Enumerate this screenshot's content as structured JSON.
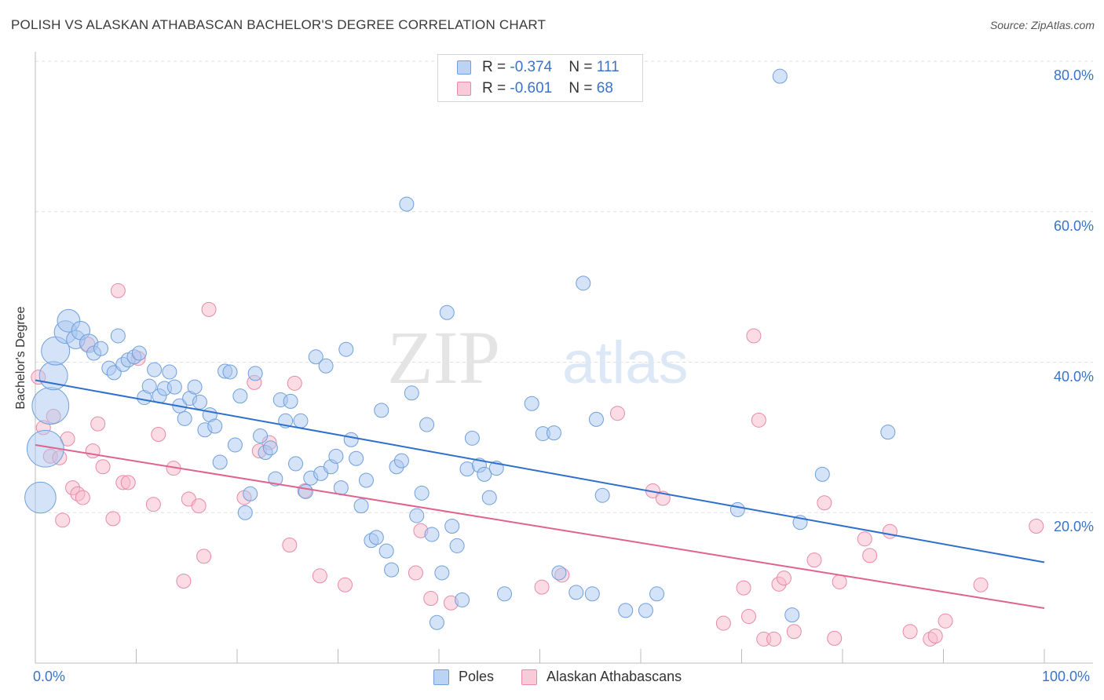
{
  "title": "POLISH VS ALASKAN ATHABASCAN BACHELOR'S DEGREE CORRELATION CHART",
  "source": "Source: ZipAtlas.com",
  "watermark": "ZIPatlas",
  "colors": {
    "poles_fill": "#a9c8f0",
    "poles_stroke": "#6f9fdc",
    "poles_line": "#2f6fcc",
    "alaskan_fill": "#f7b9cc",
    "alaskan_stroke": "#e889a8",
    "alaskan_line": "#e0628e",
    "axis_text": "#3b73c8"
  },
  "legend_top": {
    "poles": {
      "r_label": "R = ",
      "r_value": "-0.374",
      "n_label": "N = ",
      "n_value": "111"
    },
    "alaskan": {
      "r_label": "R = ",
      "r_value": "-0.601",
      "n_label": "N = ",
      "n_value": "68"
    }
  },
  "legend_bottom": {
    "poles": "Poles",
    "alaskan": "Alaskan Athabascans"
  },
  "chart_data": {
    "type": "scatter",
    "title": "POLISH VS ALASKAN ATHABASCAN BACHELOR'S DEGREE CORRELATION CHART",
    "xlabel": "",
    "ylabel": "Bachelor's Degree",
    "xlim": [
      0,
      100
    ],
    "ylim": [
      0,
      80
    ],
    "x_tick_labels": [
      "0.0%",
      "100.0%"
    ],
    "y_ticks": [
      20,
      40,
      60,
      80
    ],
    "y_tick_labels": [
      "20.0%",
      "40.0%",
      "60.0%",
      "80.0%"
    ],
    "grid": "horizontal dashed",
    "legend_position": "top-center",
    "series": [
      {
        "name": "Poles",
        "r": -0.374,
        "n": 111,
        "trend": {
          "x": [
            0,
            100
          ],
          "y": [
            37.6,
            13.4
          ]
        },
        "points": [
          [
            0.5,
            22,
            2.2
          ],
          [
            1,
            28.5,
            2.6
          ],
          [
            1.5,
            34.2,
            2.6
          ],
          [
            1.8,
            38.2,
            2
          ],
          [
            2,
            41.5,
            2
          ],
          [
            3,
            44,
            1.6
          ],
          [
            3.3,
            45.5,
            1.6
          ],
          [
            4,
            43,
            1.3
          ],
          [
            4.5,
            44.2,
            1.3
          ],
          [
            5.3,
            42.5,
            1.3
          ],
          [
            5.8,
            41.2,
            1
          ],
          [
            6.5,
            41.8,
            1
          ],
          [
            7.3,
            39.2,
            1
          ],
          [
            7.8,
            38.6,
            1
          ],
          [
            8.2,
            43.5,
            1
          ],
          [
            8.7,
            39.7,
            1
          ],
          [
            9.2,
            40.3,
            1
          ],
          [
            9.8,
            40.7,
            1
          ],
          [
            10.3,
            41.2,
            1
          ],
          [
            10.8,
            35.3,
            1
          ],
          [
            11.3,
            36.8,
            1
          ],
          [
            11.8,
            39,
            1
          ],
          [
            12.3,
            35.5,
            1
          ],
          [
            12.8,
            36.5,
            1
          ],
          [
            13.3,
            38.7,
            1
          ],
          [
            13.8,
            36.7,
            1
          ],
          [
            14.3,
            34.2,
            1
          ],
          [
            14.8,
            32.5,
            1
          ],
          [
            15.3,
            35.2,
            1
          ],
          [
            15.8,
            36.7,
            1
          ],
          [
            16.3,
            34.7,
            1
          ],
          [
            16.8,
            31,
            1
          ],
          [
            17.3,
            33,
            1
          ],
          [
            17.8,
            31.5,
            1
          ],
          [
            18.3,
            26.7,
            1
          ],
          [
            18.8,
            38.8,
            1
          ],
          [
            19.3,
            38.7,
            1
          ],
          [
            19.8,
            29,
            1
          ],
          [
            20.3,
            35.5,
            1
          ],
          [
            20.8,
            20,
            1
          ],
          [
            21.3,
            22.5,
            1
          ],
          [
            21.8,
            38.5,
            1
          ],
          [
            22.3,
            30.2,
            1
          ],
          [
            22.8,
            28,
            1
          ],
          [
            23.3,
            28.6,
            1
          ],
          [
            23.8,
            24.5,
            1
          ],
          [
            24.3,
            35,
            1
          ],
          [
            24.8,
            32.2,
            1
          ],
          [
            25.3,
            34.8,
            1
          ],
          [
            25.8,
            26.5,
            1
          ],
          [
            26.3,
            32.2,
            1
          ],
          [
            26.8,
            22.8,
            1
          ],
          [
            27.3,
            24.6,
            1
          ],
          [
            27.8,
            40.7,
            1
          ],
          [
            28.3,
            25.2,
            1
          ],
          [
            28.8,
            39.5,
            1
          ],
          [
            29.3,
            26.1,
            1
          ],
          [
            29.8,
            27.5,
            1
          ],
          [
            30.3,
            23.3,
            1
          ],
          [
            30.8,
            41.7,
            1
          ],
          [
            31.3,
            29.7,
            1
          ],
          [
            31.8,
            27.2,
            1
          ],
          [
            32.3,
            20.9,
            1
          ],
          [
            32.8,
            24.3,
            1
          ],
          [
            33.3,
            16.3,
            1
          ],
          [
            33.8,
            16.7,
            1
          ],
          [
            34.3,
            33.6,
            1
          ],
          [
            34.8,
            14.9,
            1
          ],
          [
            35.3,
            12.4,
            1
          ],
          [
            35.8,
            26.1,
            1
          ],
          [
            36.3,
            26.9,
            1
          ],
          [
            36.8,
            61,
            1
          ],
          [
            37.3,
            35.9,
            1
          ],
          [
            37.8,
            19.6,
            1
          ],
          [
            38.3,
            22.6,
            1
          ],
          [
            38.8,
            31.7,
            1
          ],
          [
            39.3,
            17.1,
            1
          ],
          [
            39.8,
            5.4,
            1
          ],
          [
            40.3,
            12,
            1
          ],
          [
            40.8,
            46.6,
            1
          ],
          [
            41.3,
            18.2,
            1
          ],
          [
            41.8,
            15.6,
            1
          ],
          [
            42.3,
            8.4,
            1
          ],
          [
            42.8,
            25.8,
            1
          ],
          [
            43.3,
            29.9,
            1
          ],
          [
            44,
            26.3,
            1
          ],
          [
            44.5,
            25.1,
            1
          ],
          [
            45,
            22,
            1
          ],
          [
            45.7,
            25.9,
            1
          ],
          [
            46.5,
            9.2,
            1
          ],
          [
            49.2,
            34.5,
            1
          ],
          [
            50.3,
            30.5,
            1
          ],
          [
            51.4,
            30.6,
            1
          ],
          [
            51.9,
            12,
            1
          ],
          [
            53.6,
            9.4,
            1
          ],
          [
            54.3,
            50.5,
            1
          ],
          [
            55.2,
            9.2,
            1
          ],
          [
            55.6,
            32.4,
            1
          ],
          [
            56.2,
            22.3,
            1
          ],
          [
            58.5,
            7,
            1
          ],
          [
            60.5,
            7,
            1
          ],
          [
            61.6,
            9.2,
            1
          ],
          [
            69.6,
            20.4,
            1
          ],
          [
            73.8,
            78,
            1
          ],
          [
            75,
            6.4,
            1
          ],
          [
            75.8,
            18.7,
            1
          ],
          [
            78,
            25.1,
            1
          ],
          [
            84.5,
            30.7,
            1
          ]
        ]
      },
      {
        "name": "Alaskan Athabascans",
        "r": -0.601,
        "n": 68,
        "trend": {
          "x": [
            0,
            100
          ],
          "y": [
            29,
            7.3
          ]
        },
        "points": [
          [
            0.3,
            38,
            1
          ],
          [
            0.8,
            31.3,
            1
          ],
          [
            1.5,
            27.5,
            1
          ],
          [
            1.8,
            32.8,
            1
          ],
          [
            2.4,
            27.3,
            1
          ],
          [
            2.7,
            19,
            1
          ],
          [
            3.2,
            29.8,
            1
          ],
          [
            3.7,
            23.3,
            1
          ],
          [
            4.2,
            22.5,
            1
          ],
          [
            4.7,
            22,
            1
          ],
          [
            5.2,
            42.4,
            1
          ],
          [
            5.7,
            28.2,
            1
          ],
          [
            6.2,
            31.8,
            1
          ],
          [
            6.7,
            26.1,
            1
          ],
          [
            7.7,
            19.2,
            1
          ],
          [
            8.2,
            49.5,
            1
          ],
          [
            8.7,
            24,
            1
          ],
          [
            9.2,
            24,
            1
          ],
          [
            10.2,
            40.5,
            1
          ],
          [
            11.7,
            21.1,
            1
          ],
          [
            12.2,
            30.4,
            1
          ],
          [
            13.7,
            25.9,
            1
          ],
          [
            14.7,
            10.9,
            1
          ],
          [
            15.2,
            21.8,
            1
          ],
          [
            16.2,
            20.9,
            1
          ],
          [
            16.7,
            14.2,
            1
          ],
          [
            17.2,
            47,
            1
          ],
          [
            20.7,
            22,
            1
          ],
          [
            21.7,
            37.3,
            1
          ],
          [
            22.2,
            28.2,
            1
          ],
          [
            23.2,
            29.3,
            1
          ],
          [
            25.2,
            15.7,
            1
          ],
          [
            25.7,
            37.2,
            1
          ],
          [
            26.7,
            22.9,
            1
          ],
          [
            28.2,
            11.6,
            1
          ],
          [
            30.7,
            10.4,
            1
          ],
          [
            37.7,
            12,
            1
          ],
          [
            38.2,
            17.6,
            1
          ],
          [
            39.2,
            8.6,
            1
          ],
          [
            41.2,
            8,
            1
          ],
          [
            50.2,
            10.1,
            1
          ],
          [
            52.2,
            11.7,
            1
          ],
          [
            57.7,
            33.2,
            1
          ],
          [
            61.2,
            22.9,
            1
          ],
          [
            62.2,
            21.9,
            1
          ],
          [
            68.2,
            5.3,
            1
          ],
          [
            70.2,
            10,
            1
          ],
          [
            70.7,
            6.2,
            1
          ],
          [
            71.2,
            43.5,
            1
          ],
          [
            71.7,
            32.3,
            1
          ],
          [
            72.2,
            3.2,
            1
          ],
          [
            73.2,
            3.2,
            1
          ],
          [
            73.7,
            10.5,
            1
          ],
          [
            74.2,
            11.3,
            1
          ],
          [
            75.2,
            4.2,
            1
          ],
          [
            77.2,
            13.7,
            1
          ],
          [
            78.2,
            21.3,
            1
          ],
          [
            79.2,
            3.3,
            1
          ],
          [
            79.7,
            10.8,
            1
          ],
          [
            82.2,
            16.5,
            1
          ],
          [
            82.7,
            14.3,
            1
          ],
          [
            84.7,
            17.5,
            1
          ],
          [
            86.7,
            4.2,
            1
          ],
          [
            88.7,
            3.2,
            1
          ],
          [
            89.2,
            3.6,
            1
          ],
          [
            90.2,
            5.6,
            1
          ],
          [
            93.7,
            10.4,
            1
          ],
          [
            99.2,
            18.2,
            1
          ]
        ]
      }
    ]
  }
}
